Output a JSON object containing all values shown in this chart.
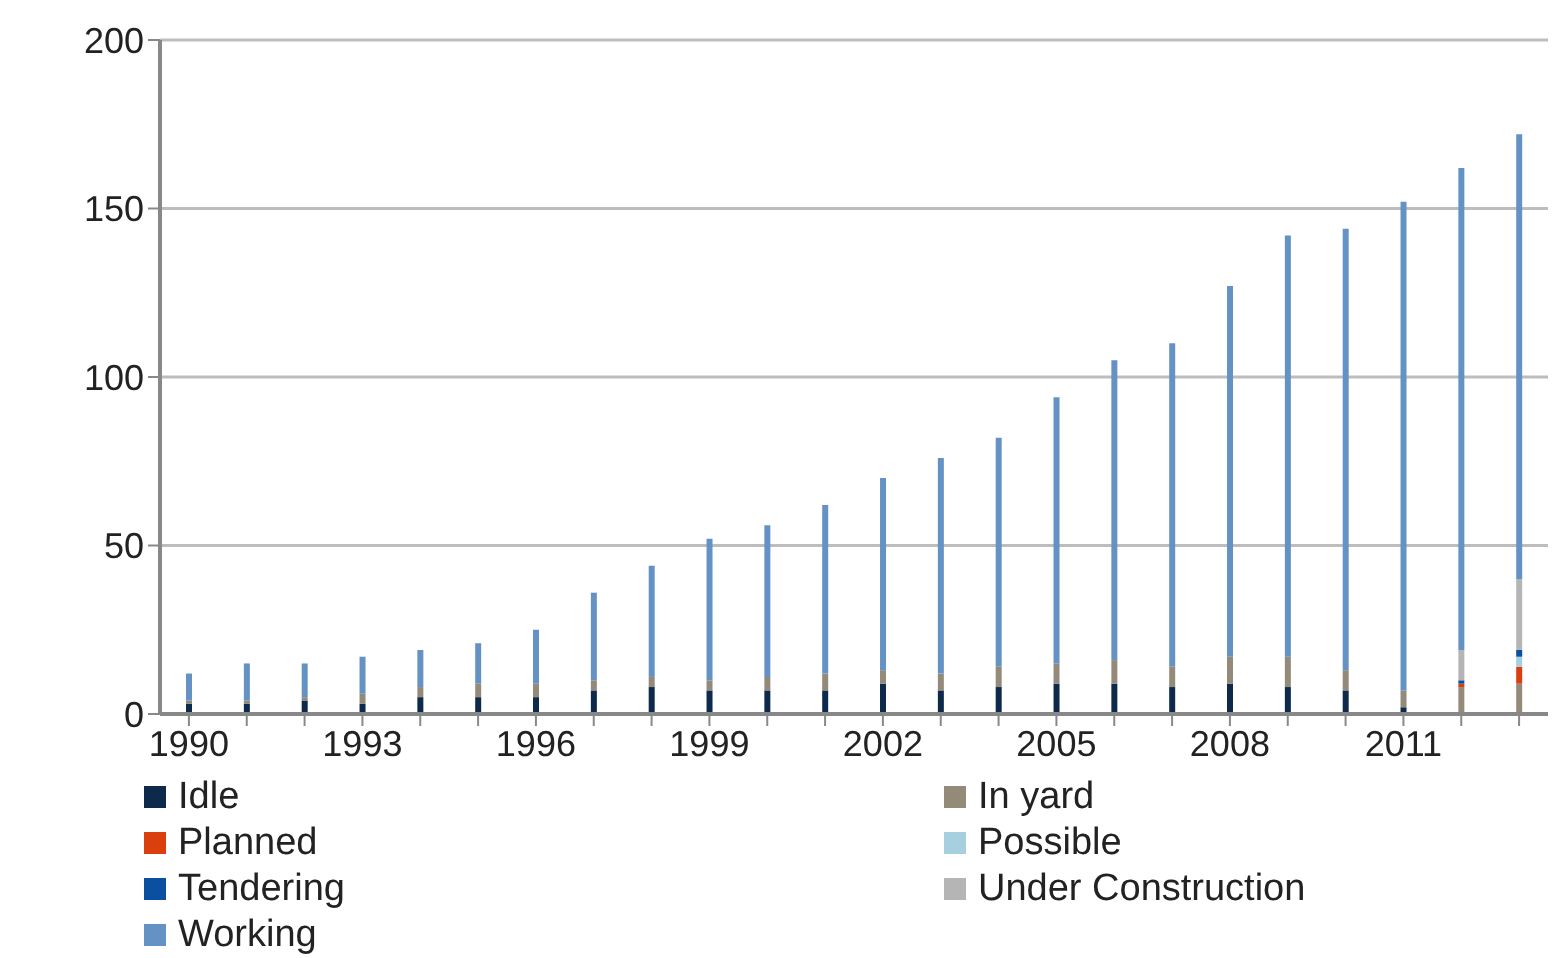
{
  "chart_data": {
    "type": "bar",
    "stacked": true,
    "categories": [
      "1990",
      null,
      null,
      "1993",
      null,
      null,
      "1996",
      null,
      null,
      "1999",
      null,
      null,
      "2002",
      null,
      null,
      "2005",
      null,
      null,
      "2008",
      null,
      null,
      "2011",
      null,
      null
    ],
    "series": [
      {
        "name": "Idle",
        "color": "#0d2a4a",
        "values": [
          3,
          3,
          4,
          3,
          5,
          5,
          5,
          7,
          8,
          7,
          7,
          7,
          9,
          7,
          8,
          9,
          9,
          8,
          9,
          8,
          7,
          2,
          0,
          0
        ]
      },
      {
        "name": "In yard",
        "color": "#948a7a",
        "values": [
          1,
          1,
          1,
          3,
          3,
          4,
          4,
          3,
          3,
          3,
          4,
          5,
          4,
          5,
          6,
          6,
          7,
          6,
          8,
          9,
          6,
          5,
          8,
          9
        ]
      },
      {
        "name": "Planned",
        "color": "#d9400e",
        "values": [
          0,
          0,
          0,
          0,
          0,
          0,
          0,
          0,
          0,
          0,
          0,
          0,
          0,
          0,
          0,
          0,
          0,
          0,
          0,
          0,
          0,
          0,
          1,
          5
        ]
      },
      {
        "name": "Possible",
        "color": "#a6cfe0",
        "values": [
          0,
          0,
          0,
          0,
          0,
          0,
          0,
          0,
          0,
          0,
          0,
          0,
          0,
          0,
          0,
          0,
          0,
          0,
          0,
          0,
          0,
          0,
          0,
          3
        ]
      },
      {
        "name": "Tendering",
        "color": "#0b4fa0",
        "values": [
          0,
          0,
          0,
          0,
          0,
          0,
          0,
          0,
          0,
          0,
          0,
          0,
          0,
          0,
          0,
          0,
          0,
          0,
          0,
          0,
          0,
          0,
          1,
          2
        ]
      },
      {
        "name": "Under Construction",
        "color": "#b5b5b5",
        "values": [
          0,
          0,
          0,
          0,
          0,
          0,
          0,
          0,
          0,
          0,
          0,
          0,
          0,
          0,
          0,
          0,
          0,
          0,
          0,
          0,
          0,
          0,
          9,
          21
        ]
      },
      {
        "name": "Working",
        "color": "#6592c5",
        "values": [
          8,
          11,
          10,
          11,
          11,
          12,
          16,
          26,
          33,
          42,
          45,
          50,
          57,
          64,
          68,
          79,
          89,
          96,
          110,
          125,
          131,
          145,
          143,
          132
        ]
      }
    ],
    "ylim": [
      0,
      200
    ],
    "yticks": [
      0,
      50,
      100,
      150,
      200
    ],
    "grid": "y",
    "legend": "bottom"
  }
}
